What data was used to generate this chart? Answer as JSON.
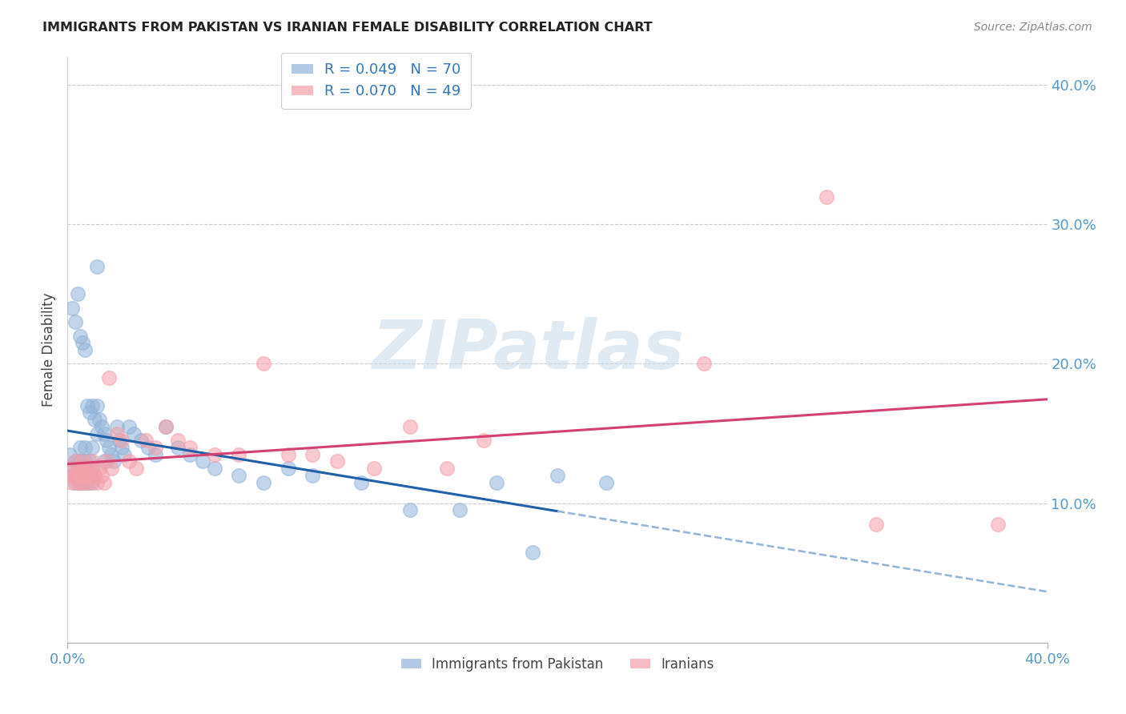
{
  "title": "IMMIGRANTS FROM PAKISTAN VS IRANIAN FEMALE DISABILITY CORRELATION CHART",
  "source": "Source: ZipAtlas.com",
  "ylabel": "Female Disability",
  "blue_color": "#92b4d9",
  "pink_color": "#f4a0aa",
  "blue_line_color": "#2060a8",
  "pink_line_color": "#d44070",
  "blue_dash_color": "#92b4d9",
  "blue_R": 0.049,
  "pink_R": 0.07,
  "blue_N": 70,
  "pink_N": 49,
  "watermark": "ZIPatlas",
  "pakistan_x": [
    0.001,
    0.002,
    0.002,
    0.003,
    0.003,
    0.004,
    0.004,
    0.005,
    0.005,
    0.005,
    0.006,
    0.006,
    0.006,
    0.007,
    0.007,
    0.007,
    0.008,
    0.008,
    0.009,
    0.009,
    0.01,
    0.01,
    0.01,
    0.011,
    0.011,
    0.012,
    0.012,
    0.013,
    0.014,
    0.015,
    0.015,
    0.016,
    0.017,
    0.018,
    0.019,
    0.02,
    0.021,
    0.022,
    0.023,
    0.025,
    0.027,
    0.03,
    0.033,
    0.036,
    0.04,
    0.045,
    0.05,
    0.055,
    0.06,
    0.07,
    0.08,
    0.09,
    0.1,
    0.12,
    0.14,
    0.16,
    0.175,
    0.19,
    0.2,
    0.22,
    0.002,
    0.003,
    0.004,
    0.005,
    0.006,
    0.007,
    0.008,
    0.009,
    0.01,
    0.012
  ],
  "pakistan_y": [
    0.135,
    0.125,
    0.12,
    0.115,
    0.13,
    0.12,
    0.125,
    0.13,
    0.115,
    0.14,
    0.125,
    0.12,
    0.115,
    0.13,
    0.14,
    0.12,
    0.125,
    0.115,
    0.12,
    0.13,
    0.125,
    0.115,
    0.14,
    0.12,
    0.16,
    0.17,
    0.15,
    0.16,
    0.155,
    0.15,
    0.13,
    0.145,
    0.14,
    0.135,
    0.13,
    0.155,
    0.145,
    0.14,
    0.135,
    0.155,
    0.15,
    0.145,
    0.14,
    0.135,
    0.155,
    0.14,
    0.135,
    0.13,
    0.125,
    0.12,
    0.115,
    0.125,
    0.12,
    0.115,
    0.095,
    0.095,
    0.115,
    0.065,
    0.12,
    0.115,
    0.24,
    0.23,
    0.25,
    0.22,
    0.215,
    0.21,
    0.17,
    0.165,
    0.17,
    0.27
  ],
  "iran_x": [
    0.001,
    0.002,
    0.002,
    0.003,
    0.003,
    0.004,
    0.004,
    0.005,
    0.005,
    0.006,
    0.006,
    0.007,
    0.007,
    0.008,
    0.008,
    0.009,
    0.01,
    0.01,
    0.011,
    0.012,
    0.013,
    0.014,
    0.015,
    0.016,
    0.017,
    0.018,
    0.02,
    0.022,
    0.025,
    0.028,
    0.032,
    0.036,
    0.04,
    0.045,
    0.05,
    0.06,
    0.07,
    0.08,
    0.09,
    0.1,
    0.11,
    0.125,
    0.14,
    0.155,
    0.17,
    0.26,
    0.31,
    0.33,
    0.38
  ],
  "iran_y": [
    0.125,
    0.12,
    0.115,
    0.13,
    0.12,
    0.115,
    0.125,
    0.12,
    0.115,
    0.13,
    0.125,
    0.12,
    0.115,
    0.125,
    0.12,
    0.115,
    0.13,
    0.125,
    0.12,
    0.115,
    0.125,
    0.12,
    0.115,
    0.13,
    0.19,
    0.125,
    0.15,
    0.145,
    0.13,
    0.125,
    0.145,
    0.14,
    0.155,
    0.145,
    0.14,
    0.135,
    0.135,
    0.2,
    0.135,
    0.135,
    0.13,
    0.125,
    0.155,
    0.125,
    0.145,
    0.2,
    0.32,
    0.085,
    0.085
  ],
  "xlim": [
    0.0,
    0.4
  ],
  "ylim": [
    0.0,
    0.42
  ],
  "yticks": [
    0.1,
    0.2,
    0.3,
    0.4
  ],
  "xticks": [
    0.0,
    0.4
  ],
  "xtick_labels": [
    "0.0%",
    "40.0%"
  ],
  "ytick_labels": [
    "10.0%",
    "20.0%",
    "30.0%",
    "40.0%"
  ]
}
